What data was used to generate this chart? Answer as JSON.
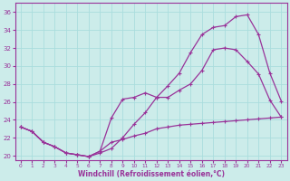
{
  "xlabel": "Windchill (Refroidissement éolien,°C)",
  "bg_color": "#ccecea",
  "line_color": "#993399",
  "grid_color": "#aadddd",
  "ylim": [
    19.5,
    37
  ],
  "xlim": [
    -0.5,
    23.5
  ],
  "yticks": [
    20,
    22,
    24,
    26,
    28,
    30,
    32,
    34,
    36
  ],
  "xticks": [
    0,
    1,
    2,
    3,
    4,
    5,
    6,
    7,
    8,
    9,
    10,
    11,
    12,
    13,
    14,
    15,
    16,
    17,
    18,
    19,
    20,
    21,
    22,
    23
  ],
  "curve1_x": [
    0,
    1,
    2,
    3,
    4,
    5,
    6,
    7,
    8,
    9,
    10,
    11,
    12,
    13,
    14,
    15,
    16,
    17,
    18,
    19,
    20,
    21,
    22,
    23
  ],
  "curve1_y": [
    23.2,
    22.7,
    21.5,
    21.0,
    20.3,
    20.1,
    19.9,
    20.3,
    20.8,
    22.0,
    23.5,
    24.8,
    26.5,
    27.8,
    29.2,
    31.5,
    33.5,
    34.3,
    34.5,
    35.5,
    35.7,
    33.5,
    29.2,
    26.1
  ],
  "curve2_x": [
    0,
    1,
    2,
    3,
    4,
    5,
    6,
    7,
    8,
    9,
    10,
    11,
    12,
    13,
    14,
    15,
    16,
    17,
    18,
    19,
    20,
    21,
    22,
    23
  ],
  "curve2_y": [
    23.2,
    22.7,
    21.5,
    21.0,
    20.3,
    20.1,
    19.9,
    20.5,
    24.2,
    26.3,
    26.5,
    27.0,
    26.5,
    26.5,
    27.3,
    28.0,
    29.5,
    31.8,
    32.0,
    31.8,
    30.5,
    29.1,
    26.2,
    24.3
  ],
  "curve3_x": [
    0,
    1,
    2,
    3,
    4,
    5,
    6,
    7,
    8,
    9,
    10,
    11,
    12,
    13,
    14,
    15,
    16,
    17,
    18,
    19,
    20,
    21,
    22,
    23
  ],
  "curve3_y": [
    23.2,
    22.7,
    21.5,
    21.0,
    20.3,
    20.1,
    19.9,
    20.5,
    21.5,
    21.8,
    22.2,
    22.5,
    23.0,
    23.2,
    23.4,
    23.5,
    23.6,
    23.7,
    23.8,
    23.9,
    24.0,
    24.1,
    24.2,
    24.3
  ]
}
